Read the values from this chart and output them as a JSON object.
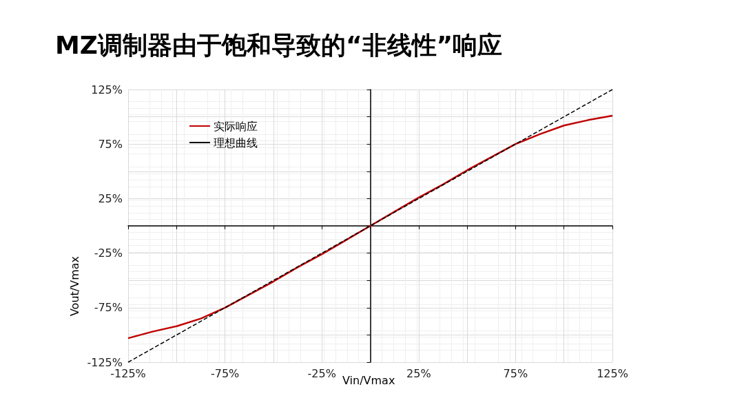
{
  "chart_data": {
    "type": "line",
    "title": "MZ调制器由于饱和导致的“非线性”响应",
    "xlabel": "Vin/Vmax",
    "ylabel": "Vout/Vmax",
    "xlim": [
      -125,
      125
    ],
    "ylim": [
      -125,
      125
    ],
    "xticks": [
      {
        "value": -125,
        "label": "-125%"
      },
      {
        "value": -100,
        "label": null
      },
      {
        "value": -75,
        "label": "-75%"
      },
      {
        "value": -50,
        "label": null
      },
      {
        "value": -25,
        "label": "-25%"
      },
      {
        "value": 0,
        "label": null
      },
      {
        "value": 25,
        "label": "25%"
      },
      {
        "value": 50,
        "label": null
      },
      {
        "value": 75,
        "label": "75%"
      },
      {
        "value": 100,
        "label": null
      },
      {
        "value": 125,
        "label": "125%"
      }
    ],
    "yticks": [
      {
        "value": -125,
        "label": "-125%"
      },
      {
        "value": -100,
        "label": null
      },
      {
        "value": -75,
        "label": "-75%"
      },
      {
        "value": -50,
        "label": null
      },
      {
        "value": -25,
        "label": "-25%"
      },
      {
        "value": 0,
        "label": null
      },
      {
        "value": 25,
        "label": "25%"
      },
      {
        "value": 50,
        "label": null
      },
      {
        "value": 75,
        "label": "75%"
      },
      {
        "value": 100,
        "label": null
      },
      {
        "value": 125,
        "label": "125%"
      }
    ],
    "grid": true,
    "legend": "top left",
    "marker": "none",
    "series": [
      {
        "name": "实际响应",
        "color": "#c00000",
        "line_style": "solid",
        "x": [
          -125,
          -112.5,
          -100,
          -87.5,
          -75,
          -62.5,
          -50,
          -37.5,
          -25,
          -12.5,
          0,
          12.5,
          25,
          37.5,
          50,
          62.5,
          75,
          87.5,
          100,
          112.5,
          125
        ],
        "values": [
          -103,
          -97,
          -92,
          -85,
          -75,
          -63,
          -51,
          -38,
          -26,
          -13,
          0,
          13,
          26,
          38,
          51,
          63,
          75,
          84,
          92,
          97,
          101
        ]
      },
      {
        "name": "理想曲线",
        "color": "#000000",
        "line_style": "dashed",
        "x": [
          -125,
          125
        ],
        "values": [
          -125,
          125
        ]
      }
    ]
  }
}
